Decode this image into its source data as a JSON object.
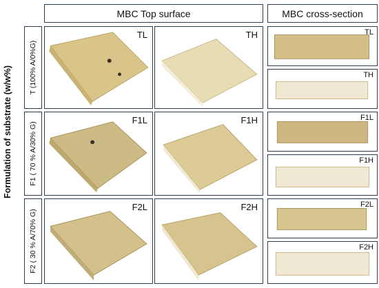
{
  "headers": {
    "top_surface": "MBC Top surface",
    "cross_section": "MBC cross-section"
  },
  "y_axis_label": "Formulation of substrate (w/w%)",
  "rows": [
    {
      "label": "T (100% A/0%G)",
      "panels": [
        "TL",
        "TH"
      ],
      "cross": [
        "TL",
        "TH"
      ]
    },
    {
      "label": "F1 ( 70 % A/30% G)",
      "panels": [
        "F1L",
        "F1H"
      ],
      "cross": [
        "F1L",
        "F1H"
      ]
    },
    {
      "label": "F2 ( 30 % A/70% G)",
      "panels": [
        "F2L",
        "F2H"
      ],
      "cross": [
        "F2L",
        "F2H"
      ]
    }
  ],
  "colors": {
    "border": "#2f3d52",
    "tan": "#d9c48a",
    "cream": "#efe8d2"
  }
}
